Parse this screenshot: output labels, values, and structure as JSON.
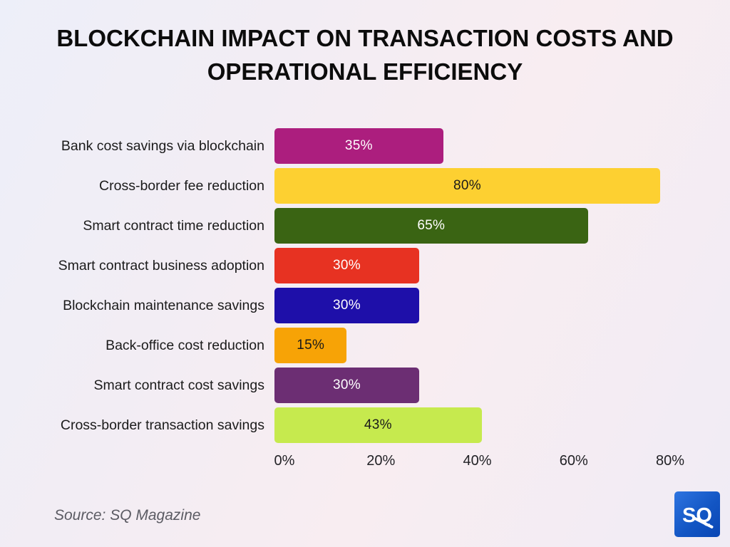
{
  "title": "Blockchain Impact on Transaction Costs and Operational Efficiency",
  "chart_data": {
    "type": "bar",
    "orientation": "horizontal",
    "title": "BLOCKCHAIN IMPACT ON TRANSACTION COSTS AND OPERATIONAL EFFICIENCY",
    "categories": [
      "Bank cost savings via blockchain",
      "Cross-border fee reduction",
      "Smart contract time reduction",
      "Smart contract business adoption",
      "Blockchain maintenance savings",
      "Back-office cost reduction",
      "Smart contract cost savings",
      "Cross-border transaction savings"
    ],
    "values": [
      35,
      80,
      65,
      30,
      30,
      15,
      30,
      43
    ],
    "value_labels": [
      "35%",
      "80%",
      "65%",
      "30%",
      "30%",
      "15%",
      "30%",
      "43%"
    ],
    "bar_colors": [
      "#AC1E7E",
      "#FDD031",
      "#3A6413",
      "#E73222",
      "#1E0FA9",
      "#F7A306",
      "#6C2E73",
      "#C6EA4E"
    ],
    "value_label_colors": [
      "#ffffff",
      "#1a1a1a",
      "#ffffff",
      "#ffffff",
      "#ffffff",
      "#1a1a1a",
      "#ffffff",
      "#1a1a1a"
    ],
    "xlabel": "",
    "ylabel": "",
    "xlim": [
      0,
      80
    ],
    "x_ticks": [
      0,
      20,
      40,
      60,
      80
    ],
    "x_tick_labels": [
      "0%",
      "20%",
      "40%",
      "60%",
      "80%"
    ],
    "grid": false,
    "legend": false
  },
  "source": "Source: SQ Magazine",
  "logo": {
    "text": "SQ"
  }
}
